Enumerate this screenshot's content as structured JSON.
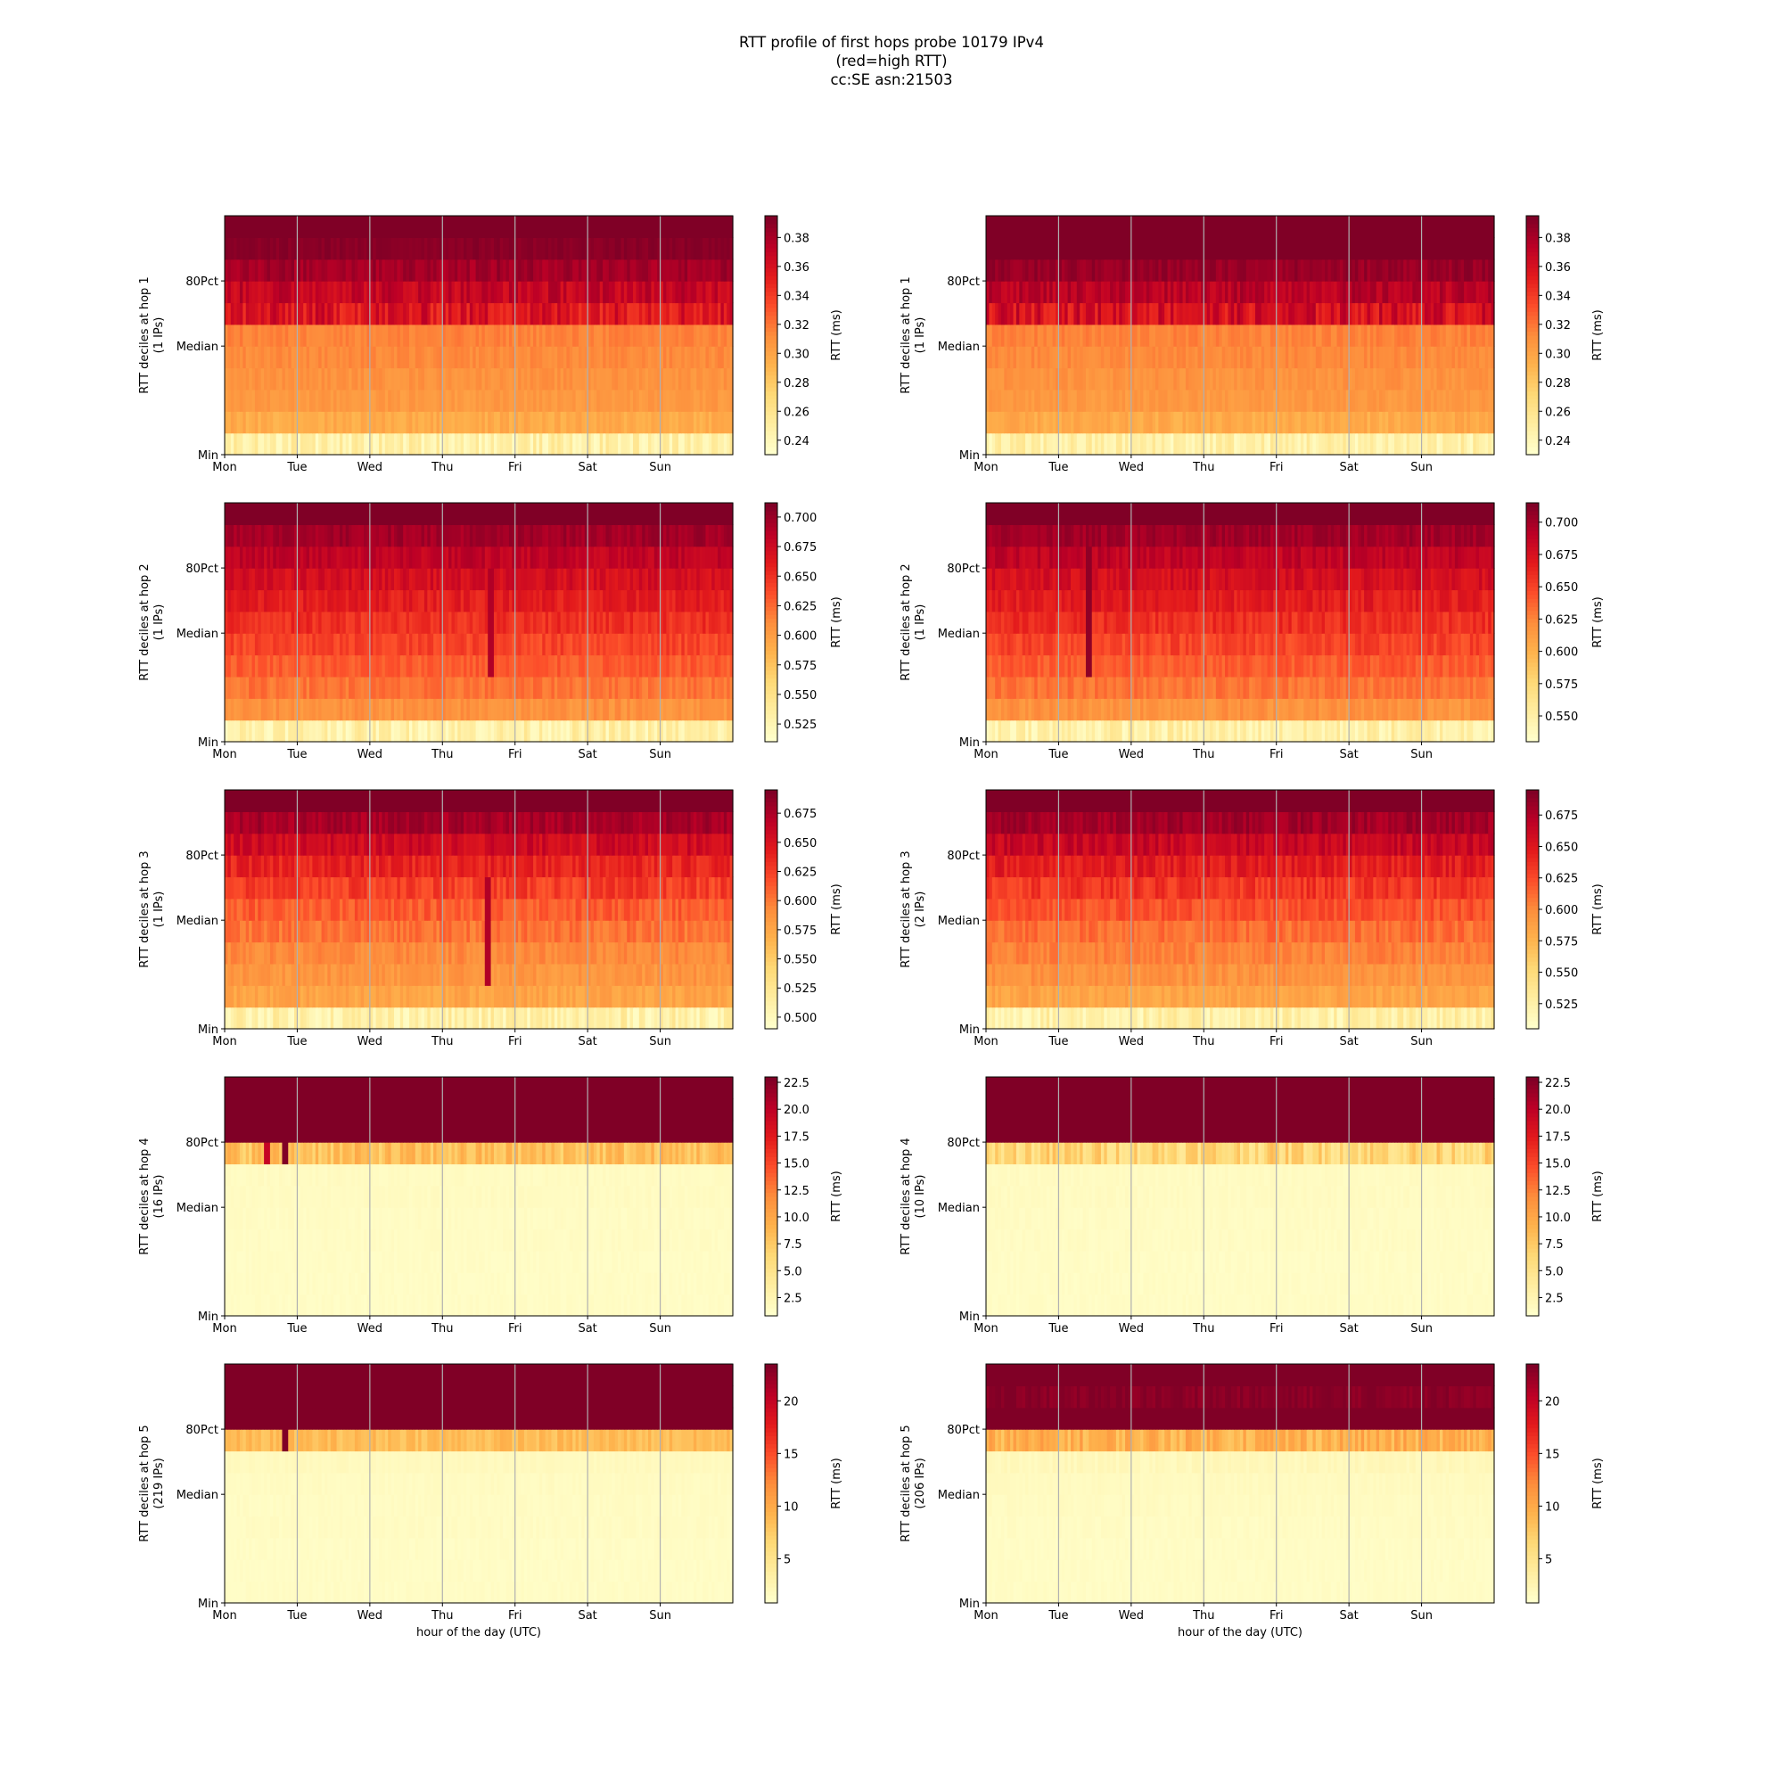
{
  "figure": {
    "title_lines": [
      "RTT profile of first hops probe 10179 IPv4",
      "(red=high RTT)",
      "cc:SE asn:21503"
    ],
    "xlabel": "hour of the day (UTC)",
    "colormap": [
      "#ffffcc",
      "#ffeda0",
      "#fed976",
      "#feb24c",
      "#fd8d3c",
      "#fc4e2a",
      "#e31a1c",
      "#bd0026",
      "#800026"
    ]
  },
  "chart_data": [
    {
      "type": "heatmap",
      "ylabel": "RTT deciles at hop 1",
      "ips_label": "(1 IPs)",
      "x_ticks": [
        "Mon",
        "Tue",
        "Wed",
        "Thu",
        "Fri",
        "Sat",
        "Sun"
      ],
      "y_ticks": [
        "Min",
        "Median",
        "80Pct"
      ],
      "colorbar": {
        "label": "RTT (ms)",
        "ticks": [
          "0.38",
          "0.36",
          "0.34",
          "0.32",
          "0.30",
          "0.28",
          "0.26",
          "0.24"
        ],
        "vmin": 0.23,
        "vmax": 0.395
      },
      "row_levels": [
        0.1,
        0.4,
        0.46,
        0.48,
        0.5,
        0.52,
        0.78,
        0.85,
        0.93,
        0.98,
        1.0
      ],
      "noise": [
        0.08,
        0.04,
        0.03,
        0.03,
        0.03,
        0.03,
        0.1,
        0.07,
        0.05,
        0.02,
        0.0
      ],
      "spikes": []
    },
    {
      "type": "heatmap",
      "ylabel": "RTT deciles at hop 1",
      "ips_label": "(1 IPs)",
      "x_ticks": [
        "Mon",
        "Tue",
        "Wed",
        "Thu",
        "Fri",
        "Sat",
        "Sun"
      ],
      "y_ticks": [
        "Min",
        "Median",
        "80Pct"
      ],
      "colorbar": {
        "label": "RTT (ms)",
        "ticks": [
          "0.38",
          "0.36",
          "0.34",
          "0.32",
          "0.30",
          "0.28",
          "0.26",
          "0.24"
        ],
        "vmin": 0.23,
        "vmax": 0.395
      },
      "row_levels": [
        0.1,
        0.4,
        0.46,
        0.48,
        0.5,
        0.52,
        0.8,
        0.88,
        0.95,
        1.0,
        1.0
      ],
      "noise": [
        0.08,
        0.04,
        0.03,
        0.03,
        0.03,
        0.03,
        0.1,
        0.06,
        0.04,
        0.0,
        0.0
      ],
      "spikes": []
    },
    {
      "type": "heatmap",
      "ylabel": "RTT deciles at hop 2",
      "ips_label": "(1 IPs)",
      "x_ticks": [
        "Mon",
        "Tue",
        "Wed",
        "Thu",
        "Fri",
        "Sat",
        "Sun"
      ],
      "y_ticks": [
        "Min",
        "Median",
        "80Pct"
      ],
      "colorbar": {
        "label": "RTT (ms)",
        "ticks": [
          "0.700",
          "0.675",
          "0.650",
          "0.625",
          "0.600",
          "0.575",
          "0.550",
          "0.525"
        ],
        "vmin": 0.51,
        "vmax": 0.712
      },
      "row_levels": [
        0.1,
        0.48,
        0.55,
        0.6,
        0.65,
        0.7,
        0.75,
        0.8,
        0.86,
        0.93,
        1.0
      ],
      "noise": [
        0.08,
        0.04,
        0.04,
        0.04,
        0.05,
        0.05,
        0.05,
        0.05,
        0.05,
        0.04,
        0.0
      ],
      "spikes": [
        {
          "x": 0.52,
          "rows": [
            3,
            4,
            5,
            6,
            7
          ],
          "level": 0.9
        }
      ]
    },
    {
      "type": "heatmap",
      "ylabel": "RTT deciles at hop 2",
      "ips_label": "(1 IPs)",
      "x_ticks": [
        "Mon",
        "Tue",
        "Wed",
        "Thu",
        "Fri",
        "Sat",
        "Sun"
      ],
      "y_ticks": [
        "Min",
        "Median",
        "80Pct"
      ],
      "colorbar": {
        "label": "RTT (ms)",
        "ticks": [
          "0.700",
          "0.675",
          "0.650",
          "0.625",
          "0.600",
          "0.575",
          "0.550"
        ],
        "vmin": 0.53,
        "vmax": 0.715
      },
      "row_levels": [
        0.1,
        0.48,
        0.55,
        0.6,
        0.65,
        0.7,
        0.75,
        0.8,
        0.86,
        0.93,
        1.0
      ],
      "noise": [
        0.08,
        0.04,
        0.04,
        0.04,
        0.05,
        0.05,
        0.05,
        0.05,
        0.05,
        0.04,
        0.0
      ],
      "spikes": [
        {
          "x": 0.2,
          "rows": [
            3,
            4,
            5,
            6,
            7,
            8
          ],
          "level": 0.97
        }
      ]
    },
    {
      "type": "heatmap",
      "ylabel": "RTT deciles at hop 3",
      "ips_label": "(1 IPs)",
      "x_ticks": [
        "Mon",
        "Tue",
        "Wed",
        "Thu",
        "Fri",
        "Sat",
        "Sun"
      ],
      "y_ticks": [
        "Min",
        "Median",
        "80Pct"
      ],
      "colorbar": {
        "label": "RTT (ms)",
        "ticks": [
          "0.675",
          "0.650",
          "0.625",
          "0.600",
          "0.575",
          "0.550",
          "0.525",
          "0.500"
        ],
        "vmin": 0.49,
        "vmax": 0.695
      },
      "row_levels": [
        0.1,
        0.42,
        0.47,
        0.5,
        0.55,
        0.6,
        0.66,
        0.73,
        0.82,
        0.92,
        1.0
      ],
      "noise": [
        0.08,
        0.04,
        0.04,
        0.04,
        0.05,
        0.05,
        0.06,
        0.06,
        0.06,
        0.05,
        0.0
      ],
      "spikes": [
        {
          "x": 0.515,
          "rows": [
            2,
            3,
            4,
            5,
            6
          ],
          "level": 0.9
        }
      ]
    },
    {
      "type": "heatmap",
      "ylabel": "RTT deciles at hop 3",
      "ips_label": "(2 IPs)",
      "x_ticks": [
        "Mon",
        "Tue",
        "Wed",
        "Thu",
        "Fri",
        "Sat",
        "Sun"
      ],
      "y_ticks": [
        "Min",
        "Median",
        "80Pct"
      ],
      "colorbar": {
        "label": "RTT (ms)",
        "ticks": [
          "0.675",
          "0.650",
          "0.625",
          "0.600",
          "0.575",
          "0.550",
          "0.525"
        ],
        "vmin": 0.505,
        "vmax": 0.695
      },
      "row_levels": [
        0.1,
        0.42,
        0.48,
        0.52,
        0.56,
        0.62,
        0.68,
        0.75,
        0.84,
        0.93,
        1.0
      ],
      "noise": [
        0.08,
        0.04,
        0.04,
        0.04,
        0.05,
        0.05,
        0.06,
        0.06,
        0.06,
        0.05,
        0.0
      ],
      "spikes": []
    },
    {
      "type": "heatmap",
      "ylabel": "RTT deciles at hop 4",
      "ips_label": "(16 IPs)",
      "x_ticks": [
        "Mon",
        "Tue",
        "Wed",
        "Thu",
        "Fri",
        "Sat",
        "Sun"
      ],
      "y_ticks": [
        "Min",
        "Median",
        "80Pct"
      ],
      "colorbar": {
        "label": "RTT (ms)",
        "ticks": [
          "22.5",
          "20.0",
          "17.5",
          "15.0",
          "12.5",
          "10.0",
          "7.5",
          "5.0",
          "2.5"
        ],
        "vmin": 0.8,
        "vmax": 23.0
      },
      "row_levels": [
        0.02,
        0.02,
        0.02,
        0.025,
        0.025,
        0.03,
        0.03,
        0.33,
        1.0,
        1.0,
        1.0
      ],
      "noise": [
        0.01,
        0.01,
        0.01,
        0.01,
        0.01,
        0.01,
        0.01,
        0.08,
        0.0,
        0.0,
        0.0
      ],
      "spikes": [
        {
          "x": 0.08,
          "rows": [
            7
          ],
          "level": 0.85
        },
        {
          "x": 0.116,
          "rows": [
            7
          ],
          "level": 1.0
        }
      ]
    },
    {
      "type": "heatmap",
      "ylabel": "RTT deciles at hop 4",
      "ips_label": "(10 IPs)",
      "x_ticks": [
        "Mon",
        "Tue",
        "Wed",
        "Thu",
        "Fri",
        "Sat",
        "Sun"
      ],
      "y_ticks": [
        "Min",
        "Median",
        "80Pct"
      ],
      "colorbar": {
        "label": "RTT (ms)",
        "ticks": [
          "22.5",
          "20.0",
          "17.5",
          "15.0",
          "12.5",
          "10.0",
          "7.5",
          "5.0",
          "2.5"
        ],
        "vmin": 0.8,
        "vmax": 23.0
      },
      "row_levels": [
        0.02,
        0.02,
        0.02,
        0.025,
        0.025,
        0.03,
        0.03,
        0.25,
        1.0,
        1.0,
        1.0
      ],
      "noise": [
        0.01,
        0.01,
        0.01,
        0.01,
        0.01,
        0.01,
        0.01,
        0.1,
        0.0,
        0.0,
        0.0
      ],
      "spikes": []
    },
    {
      "type": "heatmap",
      "ylabel": "RTT deciles at hop 5",
      "ips_label": "(219 IPs)",
      "x_ticks": [
        "Mon",
        "Tue",
        "Wed",
        "Thu",
        "Fri",
        "Sat",
        "Sun"
      ],
      "y_ticks": [
        "Min",
        "Median",
        "80Pct"
      ],
      "colorbar": {
        "label": "RTT (ms)",
        "ticks": [
          "20",
          "15",
          "10",
          "5"
        ],
        "vmin": 0.8,
        "vmax": 23.5
      },
      "row_levels": [
        0.02,
        0.02,
        0.02,
        0.025,
        0.025,
        0.03,
        0.04,
        0.34,
        1.0,
        1.0,
        1.0
      ],
      "noise": [
        0.01,
        0.01,
        0.01,
        0.01,
        0.01,
        0.01,
        0.01,
        0.05,
        0.0,
        0.0,
        0.0
      ],
      "spikes": [
        {
          "x": 0.116,
          "rows": [
            7
          ],
          "level": 1.0
        }
      ]
    },
    {
      "type": "heatmap",
      "ylabel": "RTT deciles at hop 5",
      "ips_label": "(206 IPs)",
      "x_ticks": [
        "Mon",
        "Tue",
        "Wed",
        "Thu",
        "Fri",
        "Sat",
        "Sun"
      ],
      "y_ticks": [
        "Min",
        "Median",
        "80Pct"
      ],
      "colorbar": {
        "label": "RTT (ms)",
        "ticks": [
          "20",
          "15",
          "10",
          "5"
        ],
        "vmin": 0.8,
        "vmax": 23.5
      },
      "row_levels": [
        0.02,
        0.02,
        0.02,
        0.025,
        0.03,
        0.035,
        0.05,
        0.38,
        1.0,
        0.98,
        1.0
      ],
      "noise": [
        0.01,
        0.01,
        0.01,
        0.01,
        0.01,
        0.01,
        0.02,
        0.08,
        0.0,
        0.03,
        0.0
      ],
      "spikes": []
    }
  ]
}
